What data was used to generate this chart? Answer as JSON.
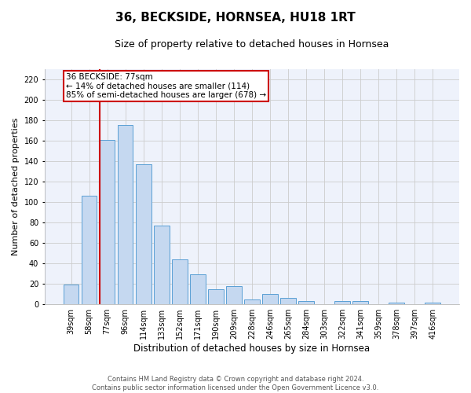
{
  "title": "36, BECKSIDE, HORNSEA, HU18 1RT",
  "subtitle": "Size of property relative to detached houses in Hornsea",
  "xlabel": "Distribution of detached houses by size in Hornsea",
  "ylabel": "Number of detached properties",
  "categories": [
    "39sqm",
    "58sqm",
    "77sqm",
    "96sqm",
    "114sqm",
    "133sqm",
    "152sqm",
    "171sqm",
    "190sqm",
    "209sqm",
    "228sqm",
    "246sqm",
    "265sqm",
    "284sqm",
    "303sqm",
    "322sqm",
    "341sqm",
    "359sqm",
    "378sqm",
    "397sqm",
    "416sqm"
  ],
  "values": [
    19,
    106,
    161,
    175,
    137,
    77,
    44,
    29,
    15,
    18,
    5,
    10,
    6,
    3,
    0,
    3,
    3,
    0,
    2,
    0,
    2
  ],
  "bar_color": "#c5d8f0",
  "bar_edge_color": "#5a9fd4",
  "vline_color": "#cc0000",
  "vline_x_index": 2,
  "annotation_text_line1": "36 BECKSIDE: 77sqm",
  "annotation_text_line2": "← 14% of detached houses are smaller (114)",
  "annotation_text_line3": "85% of semi-detached houses are larger (678) →",
  "annotation_box_color": "white",
  "annotation_box_edge_color": "#cc0000",
  "ylim": [
    0,
    230
  ],
  "yticks": [
    0,
    20,
    40,
    60,
    80,
    100,
    120,
    140,
    160,
    180,
    200,
    220
  ],
  "grid_color": "#cccccc",
  "plot_bg_color": "#eef2fb",
  "footer_text": "Contains HM Land Registry data © Crown copyright and database right 2024.\nContains public sector information licensed under the Open Government Licence v3.0.",
  "title_fontsize": 11,
  "subtitle_fontsize": 9,
  "xlabel_fontsize": 8.5,
  "ylabel_fontsize": 8,
  "tick_fontsize": 7,
  "annotation_fontsize": 7.5,
  "footer_fontsize": 6
}
